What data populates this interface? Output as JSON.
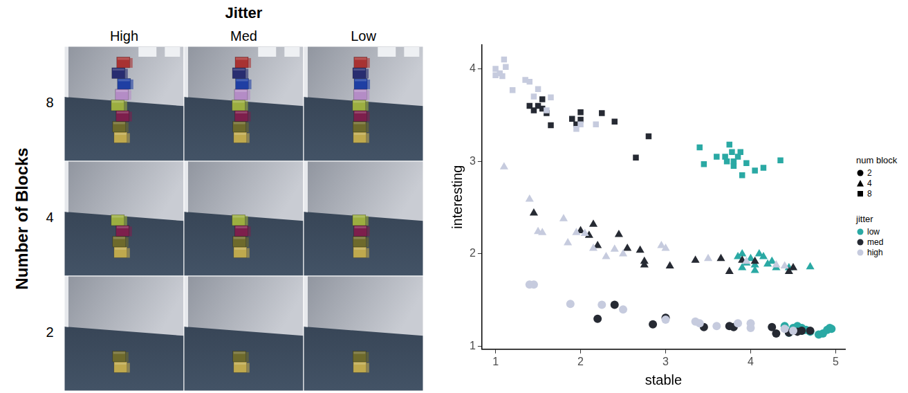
{
  "image_grid": {
    "title": "Jitter",
    "columns": [
      "High",
      "Med",
      "Low"
    ],
    "row_title": "Number of Blocks",
    "rows": [
      8,
      4,
      2
    ]
  },
  "chart_data": {
    "type": "scatter",
    "x_label": "stable",
    "y_label": "interesting",
    "xlim": [
      0.84,
      5.11
    ],
    "ylim": [
      0.97,
      4.26
    ],
    "xticks": [
      1,
      2,
      3,
      4,
      5
    ],
    "yticks": [
      1,
      2,
      3,
      4
    ],
    "grid": false,
    "legend": "right",
    "legend_groups": [
      {
        "title": "num block",
        "entries": [
          {
            "label": "2",
            "marker": "circle"
          },
          {
            "label": "4",
            "marker": "triangle"
          },
          {
            "label": "8",
            "marker": "square"
          }
        ]
      },
      {
        "title": "jitter",
        "entries": [
          {
            "label": "low",
            "color": "#2aa9a4"
          },
          {
            "label": "med",
            "color": "#262a33"
          },
          {
            "label": "high",
            "color": "#c6cbde"
          }
        ]
      }
    ],
    "series": [
      {
        "num_block": "8",
        "jitter": "high",
        "x": [
          1.0,
          1.05,
          1.1,
          1.12,
          1.08,
          1.0,
          1.2,
          1.35,
          1.4,
          1.5,
          1.45,
          1.6,
          1.65,
          1.95,
          2.0,
          2.18
        ],
        "y": [
          4.0,
          3.95,
          4.1,
          4.02,
          3.92,
          3.93,
          3.77,
          3.88,
          3.86,
          3.78,
          3.7,
          3.55,
          3.69,
          3.35,
          3.4,
          3.4
        ]
      },
      {
        "num_block": "8",
        "jitter": "med",
        "x": [
          1.4,
          1.45,
          1.5,
          1.55,
          1.6,
          1.55,
          1.65,
          1.9,
          1.95,
          2.0,
          2.0,
          2.25,
          2.4,
          2.8,
          2.65
        ],
        "y": [
          3.6,
          3.55,
          3.6,
          3.67,
          3.52,
          3.57,
          3.39,
          3.46,
          3.4,
          3.53,
          3.45,
          3.52,
          3.43,
          3.27,
          3.04
        ]
      },
      {
        "num_block": "8",
        "jitter": "low",
        "x": [
          3.4,
          3.45,
          3.6,
          3.7,
          3.75,
          3.78,
          3.8,
          3.8,
          3.85,
          3.9,
          3.95,
          4.05,
          4.15,
          4.35,
          3.72,
          3.88
        ],
        "y": [
          3.15,
          2.97,
          3.05,
          3.05,
          3.18,
          3.1,
          3.0,
          2.95,
          3.05,
          2.85,
          2.98,
          2.9,
          2.93,
          3.01,
          3.0,
          3.1
        ]
      },
      {
        "num_block": "4",
        "jitter": "high",
        "x": [
          1.1,
          1.4,
          1.5,
          1.55,
          1.8,
          1.85,
          1.95,
          2.05,
          2.15,
          2.3,
          2.4,
          2.5,
          2.95,
          3.0,
          3.5,
          3.95,
          4.3,
          4.4
        ],
        "y": [
          2.94,
          2.59,
          2.24,
          2.23,
          2.38,
          2.12,
          2.23,
          2.22,
          2.06,
          1.97,
          2.05,
          2.0,
          2.09,
          2.06,
          1.95,
          1.92,
          1.88,
          1.87
        ]
      },
      {
        "num_block": "4",
        "jitter": "med",
        "x": [
          1.45,
          2.0,
          2.1,
          2.15,
          2.2,
          2.45,
          2.55,
          2.7,
          2.75,
          2.75,
          3.05,
          3.35,
          3.65,
          3.75,
          3.9,
          4.05,
          4.45,
          4.5
        ],
        "y": [
          2.44,
          2.25,
          2.2,
          2.32,
          2.09,
          2.21,
          2.06,
          2.04,
          1.92,
          1.88,
          1.87,
          1.93,
          1.95,
          1.81,
          1.93,
          1.92,
          1.81,
          1.85
        ]
      },
      {
        "num_block": "4",
        "jitter": "low",
        "x": [
          3.85,
          3.9,
          3.95,
          4.0,
          4.05,
          4.1,
          4.15,
          4.2,
          4.25,
          4.3,
          4.45,
          4.7,
          3.9,
          4.05
        ],
        "y": [
          1.97,
          2.0,
          1.9,
          1.95,
          1.88,
          2.0,
          1.97,
          1.89,
          1.92,
          1.85,
          1.85,
          1.86,
          1.85,
          1.82
        ]
      },
      {
        "num_block": "2",
        "jitter": "high",
        "x": [
          1.4,
          1.45,
          1.88,
          2.25,
          2.5,
          3.0,
          3.35,
          3.4,
          3.6,
          3.85,
          4.0,
          4.0,
          4.4,
          4.5
        ],
        "y": [
          1.67,
          1.67,
          1.46,
          1.45,
          1.4,
          1.29,
          1.27,
          1.25,
          1.22,
          1.25,
          1.2,
          1.25,
          1.19,
          1.17
        ]
      },
      {
        "num_block": "2",
        "jitter": "med",
        "x": [
          2.2,
          2.4,
          2.85,
          3.0,
          3.45,
          3.75,
          3.8,
          4.25,
          4.3,
          4.45,
          4.55,
          4.6,
          4.7
        ],
        "y": [
          1.3,
          1.45,
          1.24,
          1.31,
          1.21,
          1.22,
          1.21,
          1.21,
          1.14,
          1.15,
          1.16,
          1.17,
          1.17
        ]
      },
      {
        "num_block": "2",
        "jitter": "low",
        "x": [
          4.4,
          4.45,
          4.5,
          4.55,
          4.6,
          4.6,
          4.7,
          4.8,
          4.85,
          4.9,
          4.93,
          4.95,
          4.65,
          4.55
        ],
        "y": [
          1.22,
          1.15,
          1.2,
          1.22,
          1.2,
          1.17,
          1.16,
          1.13,
          1.14,
          1.18,
          1.2,
          1.19,
          1.18,
          1.2
        ]
      }
    ]
  }
}
